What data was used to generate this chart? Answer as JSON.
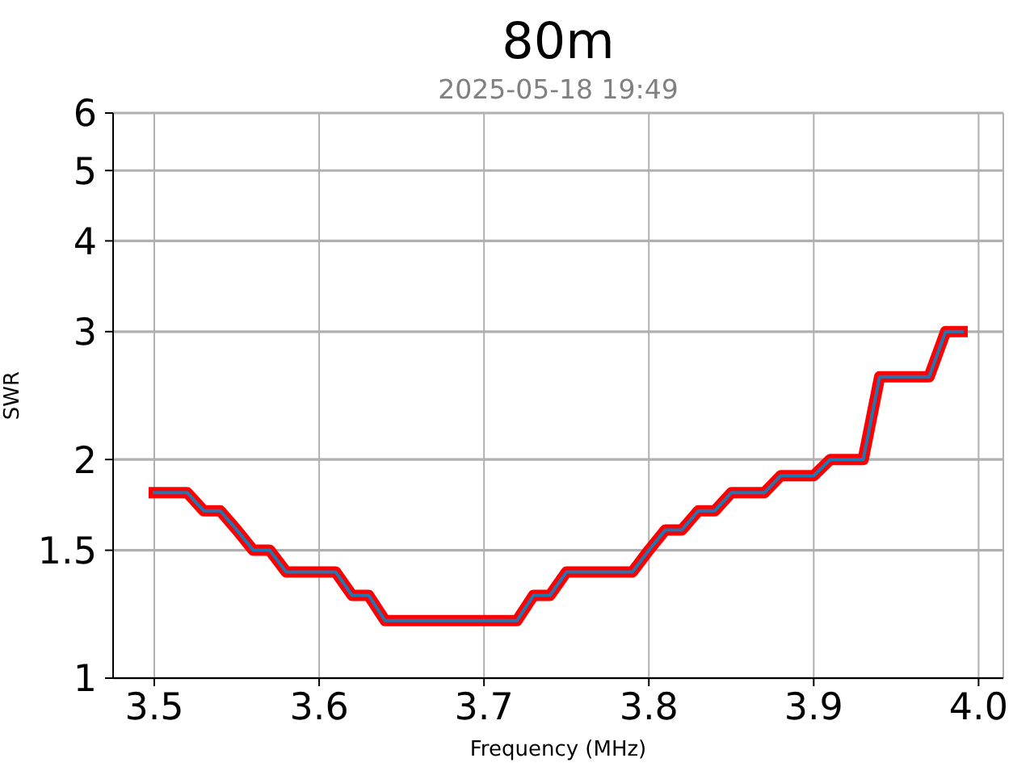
{
  "chart_data": {
    "type": "line",
    "title": "80m",
    "subtitle": "2025-05-18 19:49",
    "xlabel": "Frequency (MHz)",
    "ylabel": "SWR",
    "x": [
      3.5,
      3.51,
      3.52,
      3.53,
      3.54,
      3.55,
      3.56,
      3.57,
      3.58,
      3.59,
      3.6,
      3.61,
      3.62,
      3.63,
      3.64,
      3.65,
      3.66,
      3.67,
      3.68,
      3.69,
      3.7,
      3.71,
      3.72,
      3.73,
      3.74,
      3.75,
      3.76,
      3.77,
      3.78,
      3.79,
      3.8,
      3.81,
      3.82,
      3.83,
      3.84,
      3.85,
      3.86,
      3.87,
      3.88,
      3.89,
      3.9,
      3.91,
      3.92,
      3.93,
      3.94,
      3.95,
      3.96,
      3.97,
      3.98,
      3.99
    ],
    "series": [
      {
        "color": "#ff0000",
        "values": [
          1.8,
          1.8,
          1.8,
          1.7,
          1.7,
          1.6,
          1.5,
          1.5,
          1.4,
          1.4,
          1.4,
          1.4,
          1.3,
          1.3,
          1.2,
          1.2,
          1.2,
          1.2,
          1.2,
          1.2,
          1.2,
          1.2,
          1.2,
          1.3,
          1.3,
          1.4,
          1.4,
          1.4,
          1.4,
          1.4,
          1.5,
          1.6,
          1.6,
          1.7,
          1.7,
          1.8,
          1.8,
          1.8,
          1.9,
          1.9,
          1.9,
          2.0,
          2.0,
          2.0,
          2.6,
          2.6,
          2.6,
          2.6,
          3.0,
          3.0
        ]
      },
      {
        "color": "#1f77b4",
        "values": [
          1.8,
          1.8,
          1.8,
          1.7,
          1.7,
          1.6,
          1.5,
          1.5,
          1.4,
          1.4,
          1.4,
          1.4,
          1.3,
          1.3,
          1.2,
          1.2,
          1.2,
          1.2,
          1.2,
          1.2,
          1.2,
          1.2,
          1.2,
          1.3,
          1.3,
          1.4,
          1.4,
          1.4,
          1.4,
          1.4,
          1.5,
          1.6,
          1.6,
          1.7,
          1.7,
          1.8,
          1.8,
          1.8,
          1.9,
          1.9,
          1.9,
          2.0,
          2.0,
          2.0,
          2.6,
          2.6,
          2.6,
          2.6,
          3.0,
          3.0
        ]
      }
    ],
    "xlim": [
      3.475,
      4.015
    ],
    "xticks": [
      3.5,
      3.6,
      3.7,
      3.8,
      3.9,
      {
        "value": 4,
        "label": "4.0"
      }
    ],
    "ylim": [
      1,
      6
    ],
    "yticks": [
      1,
      1.5,
      2,
      3,
      4,
      5,
      6
    ],
    "log": true,
    "grid": true,
    "marker": "none",
    "line_style": "solid"
  }
}
